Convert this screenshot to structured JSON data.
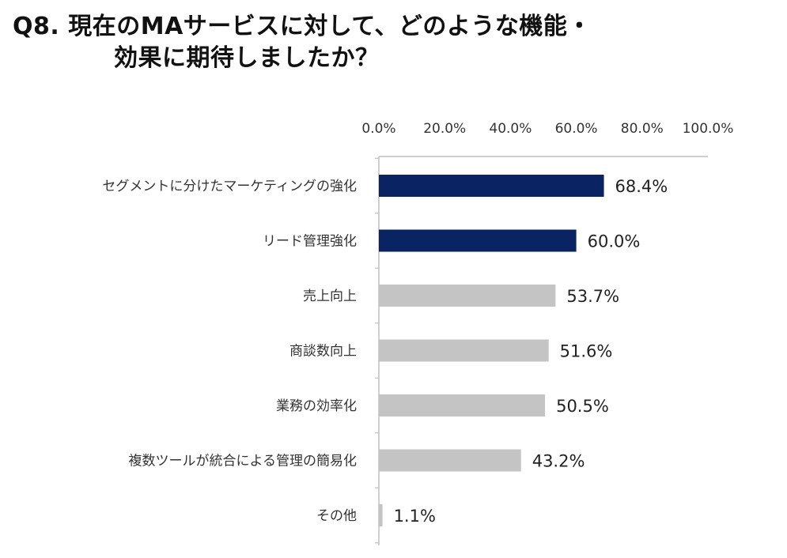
{
  "title_line1": "Q8. 現在のMAサービスに対して、どのような機能・",
  "title_line2": "効果に期待しましたか？",
  "colors": {
    "highlight": "#0a2463",
    "normal": "#c4c4c4",
    "axis": "#bfbfbf"
  },
  "chart_data": {
    "type": "bar",
    "orientation": "horizontal",
    "axis_position": "top",
    "xlim": [
      0,
      100
    ],
    "ticks": [
      "0.0%",
      "20.0%",
      "40.0%",
      "60.0%",
      "80.0%",
      "100.0%"
    ],
    "tick_values": [
      0,
      20,
      40,
      60,
      80,
      100
    ],
    "categories": [
      "セグメントに分けたマーケティングの強化",
      "リード管理強化",
      "売上向上",
      "商談数向上",
      "業務の効率化",
      "複数ツールが統合による管理の簡易化",
      "その他"
    ],
    "values": [
      68.4,
      60.0,
      53.7,
      51.6,
      50.5,
      43.2,
      1.1
    ],
    "data_labels": [
      "68.4%",
      "60.0%",
      "53.7%",
      "51.6%",
      "50.5%",
      "43.2%",
      "1.1%"
    ],
    "highlighted": [
      true,
      true,
      false,
      false,
      false,
      false,
      false
    ],
    "grid": false
  }
}
